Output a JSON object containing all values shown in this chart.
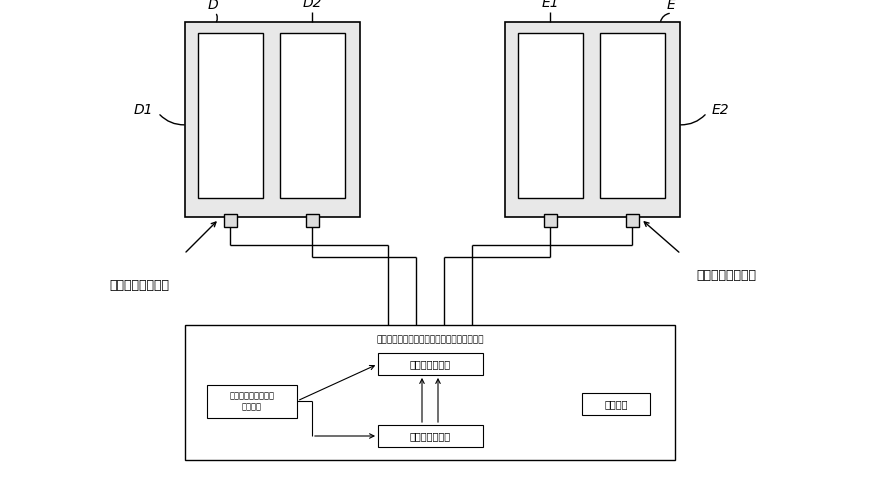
{
  "bg_color": "#ffffff",
  "line_color": "#000000",
  "text_color": "#000000",
  "label_D": "D",
  "label_D1": "D1",
  "label_D2": "D2",
  "label_E": "E",
  "label_E1": "E1",
  "label_E2": "E2",
  "label_port_left": "データ受信接続口",
  "label_port_right": "データ受信接続口",
  "box_title": "演算装置内で実行されている処理プログラム",
  "proc_store": "データ保存処理",
  "proc_capacity": "データ保存可能容量\n検出処理",
  "proc_control": "制御処理",
  "proc_input": "データ入力処理",
  "font_size_label": 9,
  "font_size_small": 6,
  "font_size_proc": 7,
  "font_size_proc_small": 6
}
